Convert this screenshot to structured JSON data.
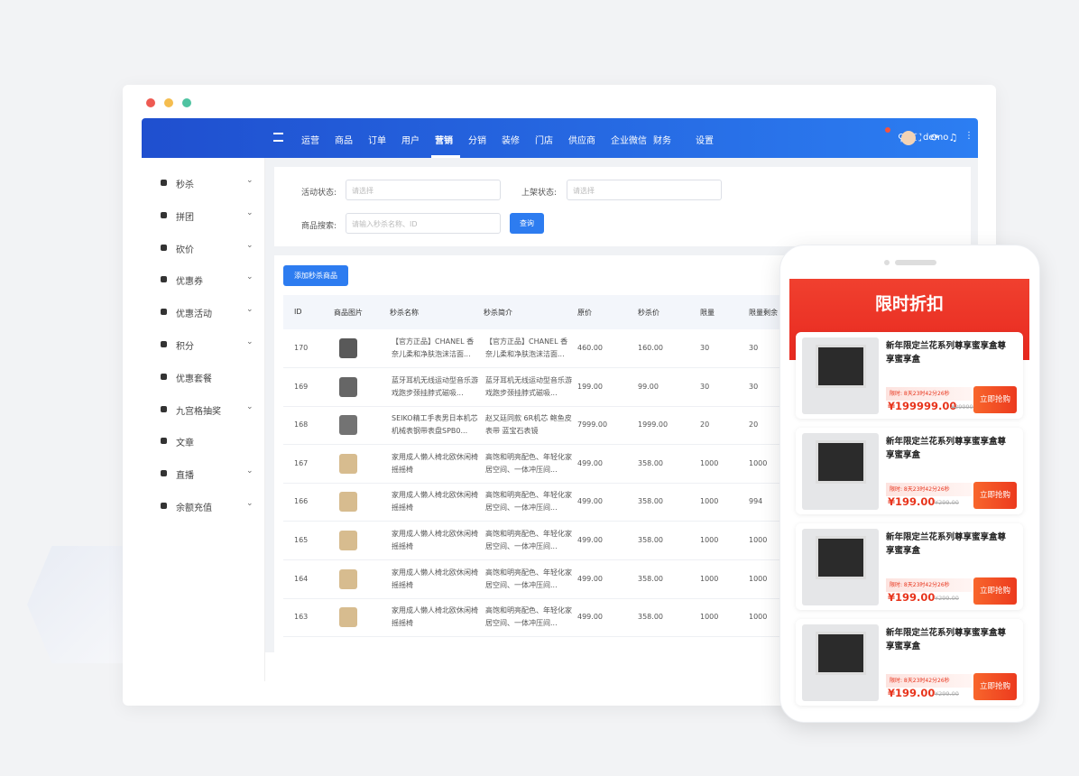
{
  "nav": {
    "menu": [
      "运营",
      "商品",
      "订单",
      "用户",
      "营销",
      "分销",
      "装修",
      "门店",
      "供应商",
      "企业微信",
      "财务",
      "设置"
    ],
    "active": 4,
    "user": "demo"
  },
  "sidebar": [
    "秒杀",
    "拼团",
    "砍价",
    "优惠券",
    "优惠活动",
    "积分",
    "优惠套餐",
    "九宫格抽奖",
    "文章",
    "直播",
    "余额充值"
  ],
  "filters": {
    "status_label": "活动状态:",
    "status_placeholder": "请选择",
    "shelf_label": "上架状态:",
    "shelf_placeholder": "请选择",
    "search_label": "商品搜索:",
    "search_placeholder": "请输入秒杀名称、ID",
    "search_button": "查询"
  },
  "add_button": "添加秒杀商品",
  "table": {
    "headers": [
      "ID",
      "商品图片",
      "秒杀名称",
      "秒杀简介",
      "原价",
      "秒杀价",
      "限量",
      "限量剩余"
    ],
    "rows": [
      [
        "170",
        "【官方正品】CHANEL 香奈儿柔和净肤泡沫洁面...",
        "【官方正品】CHANEL 香奈儿柔和净肤泡沫洁面...",
        "460.00",
        "160.00",
        "30",
        "30"
      ],
      [
        "169",
        "蓝牙耳机无线运动型音乐游戏跑步颈挂脖式磁吸...",
        "蓝牙耳机无线运动型音乐游戏跑步颈挂脖式磁吸...",
        "199.00",
        "99.00",
        "30",
        "30"
      ],
      [
        "168",
        "SEIKO精工手表男日本机芯机械表钢带表盘SPB0...",
        "赵又廷同款 6R机芯 鲍鱼皮表带 蓝宝石表镜",
        "7999.00",
        "1999.00",
        "20",
        "20"
      ],
      [
        "167",
        "家用成人懒人椅北欧休闲椅摇摇椅",
        "高饱和明亮配色、年轻化家居空间、一体冲压间...",
        "499.00",
        "358.00",
        "1000",
        "1000"
      ],
      [
        "166",
        "家用成人懒人椅北欧休闲椅摇摇椅",
        "高饱和明亮配色、年轻化家居空间、一体冲压间...",
        "499.00",
        "358.00",
        "1000",
        "994"
      ],
      [
        "165",
        "家用成人懒人椅北欧休闲椅摇摇椅",
        "高饱和明亮配色、年轻化家居空间、一体冲压间...",
        "499.00",
        "358.00",
        "1000",
        "1000"
      ],
      [
        "164",
        "家用成人懒人椅北欧休闲椅摇摇椅",
        "高饱和明亮配色、年轻化家居空间、一体冲压间...",
        "499.00",
        "358.00",
        "1000",
        "1000"
      ],
      [
        "163",
        "家用成人懒人椅北欧休闲椅摇摇椅",
        "高饱和明亮配色、年轻化家居空间、一体冲压间...",
        "499.00",
        "358.00",
        "1000",
        "1000"
      ]
    ]
  },
  "phone": {
    "title": "限时折扣",
    "cards": [
      {
        "name": "新年限定兰花系列尊享蜜享盒尊享蜜享盒",
        "timer": "限时: 8天23时42分26秒",
        "price": "¥199999.00",
        "original": "¥29999",
        "button": "立即抢购"
      },
      {
        "name": "新年限定兰花系列尊享蜜享盒尊享蜜享盒",
        "timer": "限时: 8天23时42分26秒",
        "price": "¥199.00",
        "original": "¥299.00",
        "button": "立即抢购"
      },
      {
        "name": "新年限定兰花系列尊享蜜享盒尊享蜜享盒",
        "timer": "限时: 8天23时42分26秒",
        "price": "¥199.00",
        "original": "¥299.00",
        "button": "立即抢购"
      },
      {
        "name": "新年限定兰花系列尊享蜜享盒尊享蜜享盒",
        "timer": "限时: 8天23时42分26秒",
        "price": "¥199.00",
        "original": "¥299.00",
        "button": "立即抢购"
      }
    ]
  }
}
